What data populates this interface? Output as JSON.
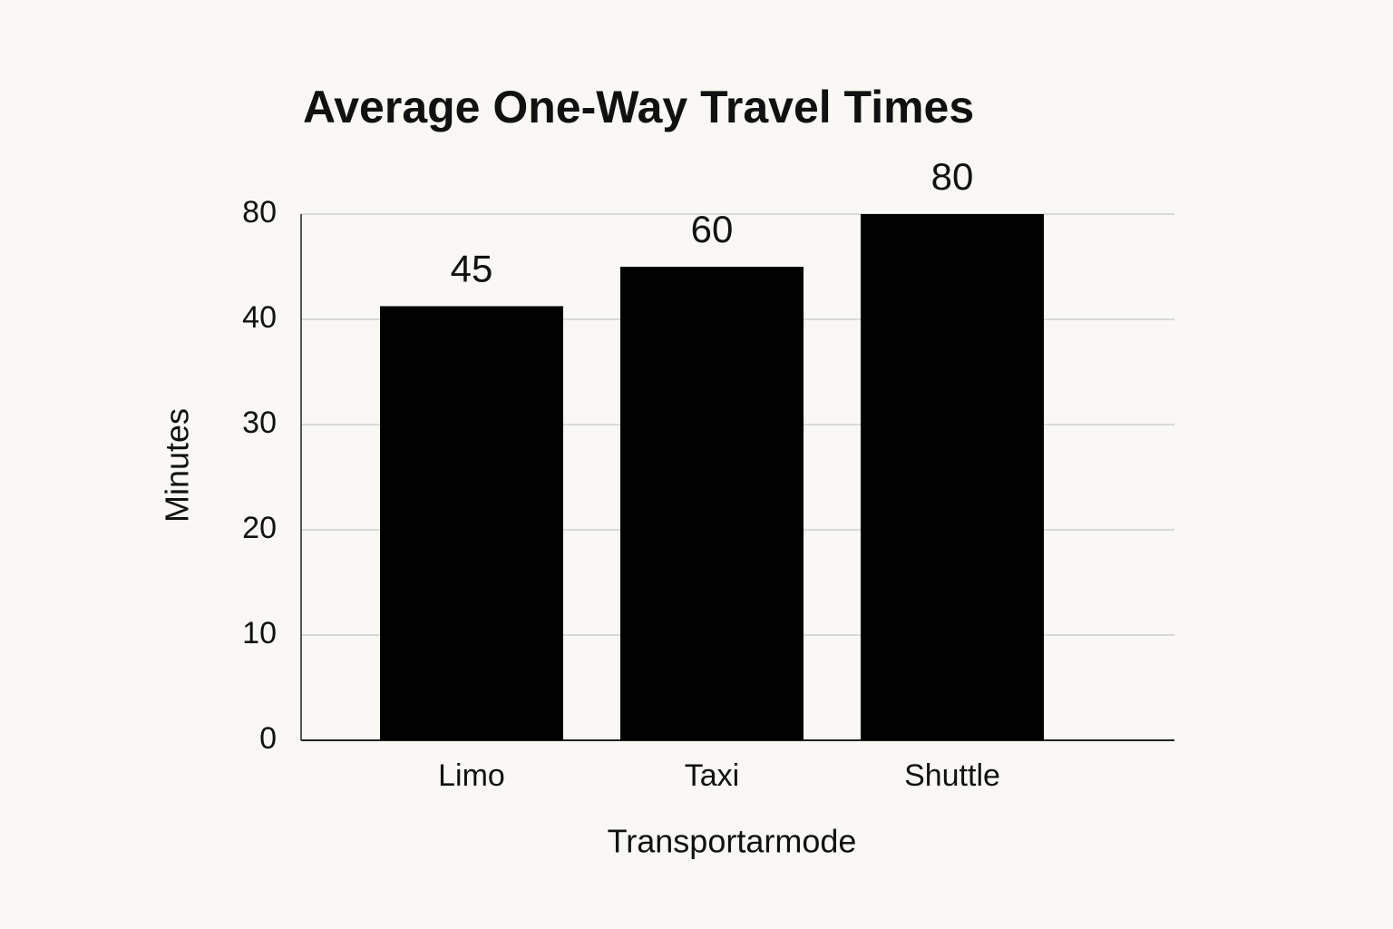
{
  "chart_data": {
    "type": "bar",
    "title": "Average One-Way Travel Times",
    "x_label": "Transportarmode",
    "y_label": "Minutes",
    "categories": [
      "Limo",
      "Taxi",
      "Shuttle"
    ],
    "values": [
      45,
      60,
      80
    ],
    "color": "#000000",
    "ylim": [
      0,
      80
    ],
    "yticks": [
      0,
      10,
      20,
      30,
      40,
      80
    ],
    "grid": true
  }
}
